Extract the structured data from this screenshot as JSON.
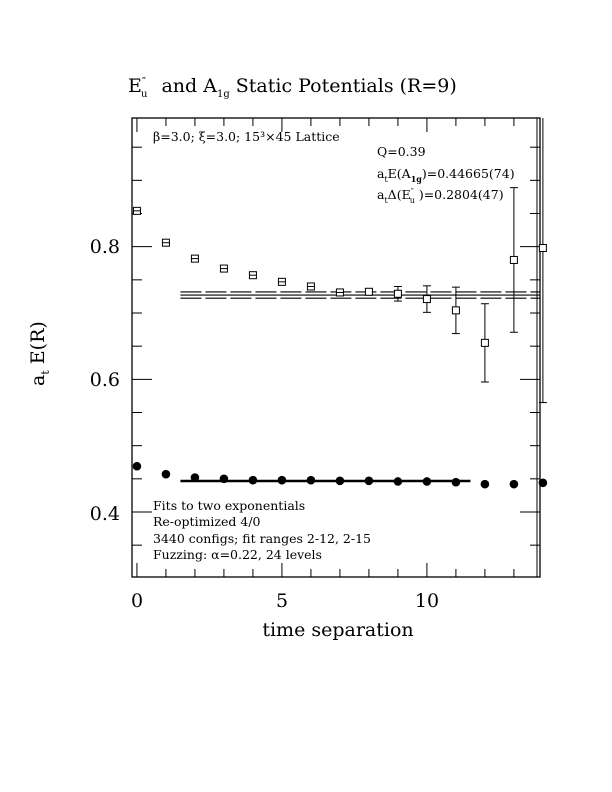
{
  "chart_data": {
    "type": "scatter",
    "title_parts": {
      "e": "E",
      "e_sup": "″",
      "e_sub": "u",
      "and": " and A",
      "a_sub": "1g",
      "rest": " Static Potentials (R=9)"
    },
    "xlabel": "time separation",
    "ylabel_parts": {
      "a": "a",
      "a_sub": "t",
      "rest": " E(R)"
    },
    "xlim": [
      -0.17,
      13.9
    ],
    "ylim": [
      0.302,
      0.994
    ],
    "x_ticks": [
      0,
      5,
      10
    ],
    "x_tick_labels": [
      "0",
      "5",
      "10"
    ],
    "y_ticks": [
      0.4,
      0.6,
      0.8
    ],
    "y_tick_labels": [
      "0.4",
      "0.6",
      "0.8"
    ],
    "grid": false,
    "annotations": {
      "lattice": "β=3.0; ξ=3.0; 15³×45 Lattice",
      "q": "Q=0.39",
      "a1g": {
        "pre": "a",
        "sub": "t",
        "mid": "E(A",
        "sub2": "1g",
        "post": ")=0.44665(74)"
      },
      "eu": {
        "pre": "a",
        "sub": "t",
        "mid": "Δ(E",
        "sup2": "″",
        "sub2": "u",
        "post": " )=0.2804(47)"
      },
      "notes": [
        "Fits to two exponentials",
        "Re-optimized 4/0",
        "3440 configs; fit ranges 2-12, 2-15",
        "Fuzzing: α=0.22, 24 levels"
      ]
    },
    "series": [
      {
        "marker": "open-square",
        "x": [
          0,
          1,
          2,
          3,
          4,
          5,
          6,
          7,
          8,
          9,
          10,
          11,
          12,
          13,
          14
        ],
        "y": [
          0.854,
          0.806,
          0.782,
          0.767,
          0.757,
          0.747,
          0.74,
          0.731,
          0.732,
          0.729,
          0.721,
          0.704,
          0.655,
          0.78,
          0.798
        ],
        "err": [
          0.001,
          0.001,
          0.001,
          0.001,
          0.001,
          0.001,
          0.001,
          0.001,
          0.004,
          0.011,
          0.02,
          0.035,
          0.059,
          0.109,
          0.233
        ]
      },
      {
        "marker": "filled-circle",
        "x": [
          0,
          1,
          2,
          3,
          4,
          5,
          6,
          7,
          8,
          9,
          10,
          11,
          12,
          13,
          14
        ],
        "y": [
          0.469,
          0.457,
          0.452,
          0.45,
          0.448,
          0.448,
          0.448,
          0.447,
          0.447,
          0.446,
          0.446,
          0.445,
          0.442,
          0.442,
          0.444
        ],
        "err": [
          0,
          0,
          0,
          0,
          0,
          0,
          0,
          0,
          0,
          0,
          0,
          0,
          0,
          0,
          0
        ]
      }
    ],
    "fits": [
      {
        "value": 0.44665,
        "error": 0.00074,
        "x_range": [
          1.5,
          11.5
        ],
        "style": "solid-thick"
      },
      {
        "value": 0.72705,
        "error": 0.0047,
        "x_range": [
          1.5,
          14
        ],
        "style": "solid-with-dashed-band"
      }
    ]
  }
}
